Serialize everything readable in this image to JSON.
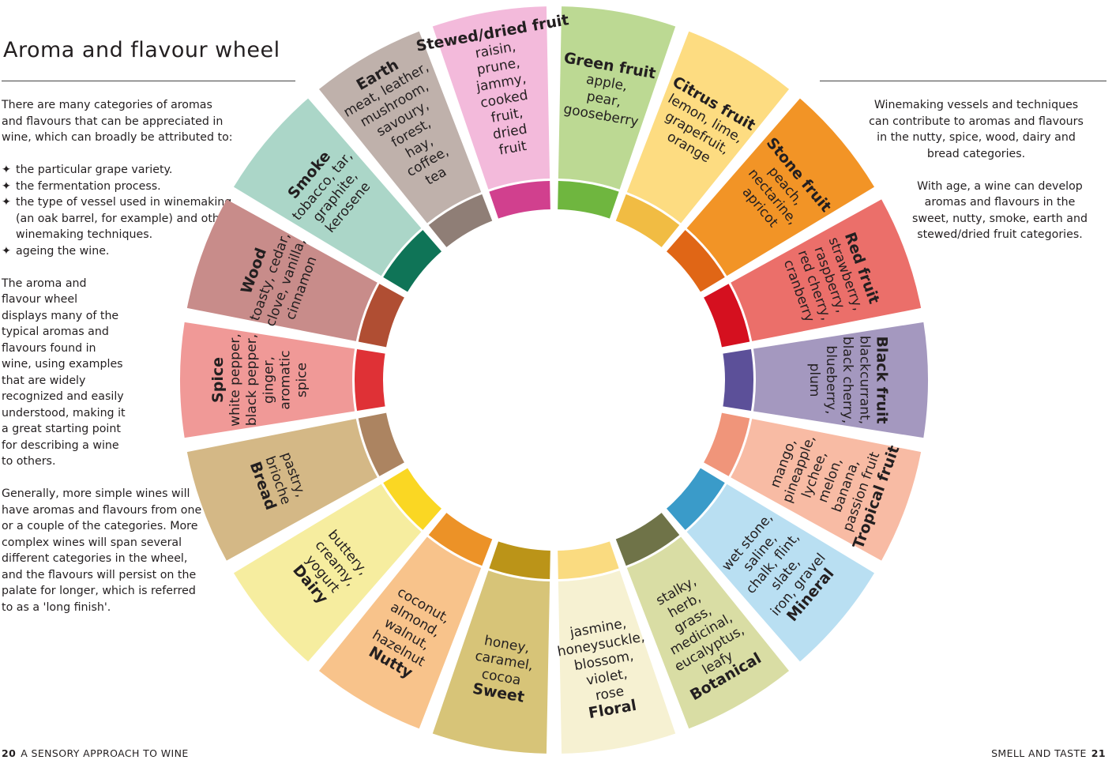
{
  "left_page": {
    "title": "Aroma and flavour wheel",
    "intro": "There are many categories of aromas and flavours that can be appreciated in wine, which can broadly be attributed to:",
    "bullets": [
      "the particular grape variety.",
      "the fermentation process.",
      "the type of vessel used in winemaking (an oak barrel, for example) and other winemaking techniques.",
      "ageing the wine."
    ],
    "bullet_glyph": "✦",
    "paragraph_2": "The aroma and flavour wheel displays many of the typical aromas and flavours found in wine, using examples that are widely recognized and easily understood, making it a great starting point for describing a wine to others.",
    "paragraph_3": "Generally, more simple wines will have aromas and flavours from one or a couple of the categories. More complex wines will span several different categories in the wheel, and the flavours will persist on the palate for longer, which is referred to as a 'long finish'.",
    "folio_number": "20",
    "folio_text": "A SENSORY APPROACH TO WINE"
  },
  "right_page": {
    "paragraph_1": "Winemaking vessels and techniques can contribute to aromas and flavours in the nutty, spice, wood, dairy and bread categories.",
    "paragraph_2": "With age, a wine can develop aromas and flavours in the sweet, nutty, smoke, earth and stewed/dried fruit categories.",
    "folio_number": "21",
    "folio_text": "SMELL AND TASTE"
  },
  "wheel": {
    "categories": [
      {
        "name": "Green fruit",
        "examples": [
          "apple,",
          "pear,",
          "gooseberry"
        ],
        "color": "#bcd993",
        "accent": "#6fb63f"
      },
      {
        "name": "Citrus fruit",
        "examples": [
          "lemon, lime,",
          "grapefruit,",
          "orange"
        ],
        "color": "#fddc81",
        "accent": "#f1bc43"
      },
      {
        "name": "Stone fruit",
        "examples": [
          "peach,",
          "nectarine,",
          "apricot"
        ],
        "color": "#f29426",
        "accent": "#e06616"
      },
      {
        "name": "Red fruit",
        "examples": [
          "strawberry,",
          "raspberry,",
          "red cherry,",
          "cranberry"
        ],
        "color": "#eb6f6a",
        "accent": "#d5101f"
      },
      {
        "name": "Black fruit",
        "examples": [
          "blackcurrant,",
          "black cherry,",
          "blueberry,",
          "plum"
        ],
        "color": "#a498bf",
        "accent": "#5c5099"
      },
      {
        "name": "Tropical fruit",
        "examples": [
          "mango,",
          "pineapple,",
          "lychee,",
          "melon,",
          "banana,",
          "passion fruit"
        ],
        "color": "#f8bba4",
        "accent": "#f0957a"
      },
      {
        "name": "Mineral",
        "examples": [
          "wet stone,",
          "saline,",
          "chalk, flint,",
          "slate,",
          "iron, gravel"
        ],
        "color": "#b9dff2",
        "accent": "#3a9bc9"
      },
      {
        "name": "Botanical",
        "examples": [
          "stalky,",
          "herb,",
          "grass,",
          "medicinal,",
          "eucalyptus,",
          "leafy"
        ],
        "color": "#d9dda4",
        "accent": "#6f7348"
      },
      {
        "name": "Floral",
        "examples": [
          "jasmine,",
          "honeysuckle,",
          "blossom,",
          "violet,",
          "rose"
        ],
        "color": "#f6f1d2",
        "accent": "#fadb80"
      },
      {
        "name": "Sweet",
        "examples": [
          "honey,",
          "caramel,",
          "cocoa"
        ],
        "color": "#d7c478",
        "accent": "#bb9418"
      },
      {
        "name": "Nutty",
        "examples": [
          "coconut,",
          "almond,",
          "walnut,",
          "hazelnut"
        ],
        "color": "#f8c38b",
        "accent": "#ec9227"
      },
      {
        "name": "Dairy",
        "examples": [
          "buttery,",
          "creamy,",
          "yogurt"
        ],
        "color": "#f6ed9f",
        "accent": "#fad723"
      },
      {
        "name": "Bread",
        "examples": [
          "pastry,",
          "brioche"
        ],
        "color": "#d4b886",
        "accent": "#ac8461"
      },
      {
        "name": "Spice",
        "examples": [
          "white pepper,",
          "black pepper,",
          "ginger,",
          "aromatic",
          "spice"
        ],
        "color": "#f09997",
        "accent": "#df3136"
      },
      {
        "name": "Wood",
        "examples": [
          "toasty, cedar,",
          "clove, vanilla,",
          "cinnamon"
        ],
        "color": "#c88c8a",
        "accent": "#b04e33"
      },
      {
        "name": "Smoke",
        "examples": [
          "tobacco, tar,",
          "graphite,",
          "kerosene"
        ],
        "color": "#abd6c8",
        "accent": "#0f7457"
      },
      {
        "name": "Earth",
        "examples": [
          "meat, leather,",
          "mushroom,",
          "savoury,",
          "forest,",
          "hay,",
          "coffee,",
          "tea"
        ],
        "color": "#bfb1ab",
        "accent": "#8f7e76"
      },
      {
        "name": "Stewed/dried fruit",
        "examples": [
          "raisin,",
          "prune,",
          "jammy,",
          "cooked",
          "fruit,",
          "dried",
          "fruit"
        ],
        "color": "#f3badb",
        "accent": "#d1408e"
      }
    ]
  }
}
